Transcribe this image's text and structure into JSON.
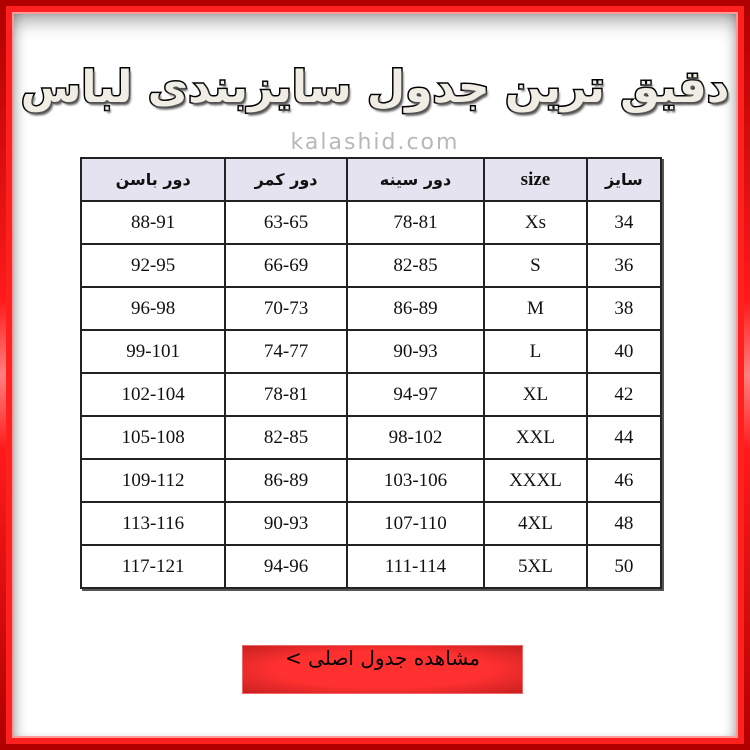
{
  "title": "دقیق ترین جدول سایزبندی لباس",
  "watermark": "kalashid.com",
  "table": {
    "headers": [
      "سایز",
      "size",
      "دور سینه",
      "دور کمر",
      "دور باسن"
    ],
    "rows": [
      [
        "34",
        "Xs",
        "78-81",
        "63-65",
        "88-91"
      ],
      [
        "36",
        "S",
        "82-85",
        "66-69",
        "92-95"
      ],
      [
        "38",
        "M",
        "86-89",
        "70-73",
        "96-98"
      ],
      [
        "40",
        "L",
        "90-93",
        "74-77",
        "99-101"
      ],
      [
        "42",
        "XL",
        "94-97",
        "78-81",
        "102-104"
      ],
      [
        "44",
        "XXL",
        "98-102",
        "82-85",
        "105-108"
      ],
      [
        "46",
        "XXXL",
        "103-106",
        "86-89",
        "109-112"
      ],
      [
        "48",
        "4XL",
        "107-110",
        "90-93",
        "113-116"
      ],
      [
        "50",
        "5XL",
        "111-114",
        "94-96",
        "117-121"
      ]
    ]
  },
  "button": {
    "label": "مشاهده جدول اصلی >"
  },
  "colors": {
    "frame": "#ff1a1a",
    "header_bg": "#e5e3ef",
    "button": "#ff3030"
  }
}
